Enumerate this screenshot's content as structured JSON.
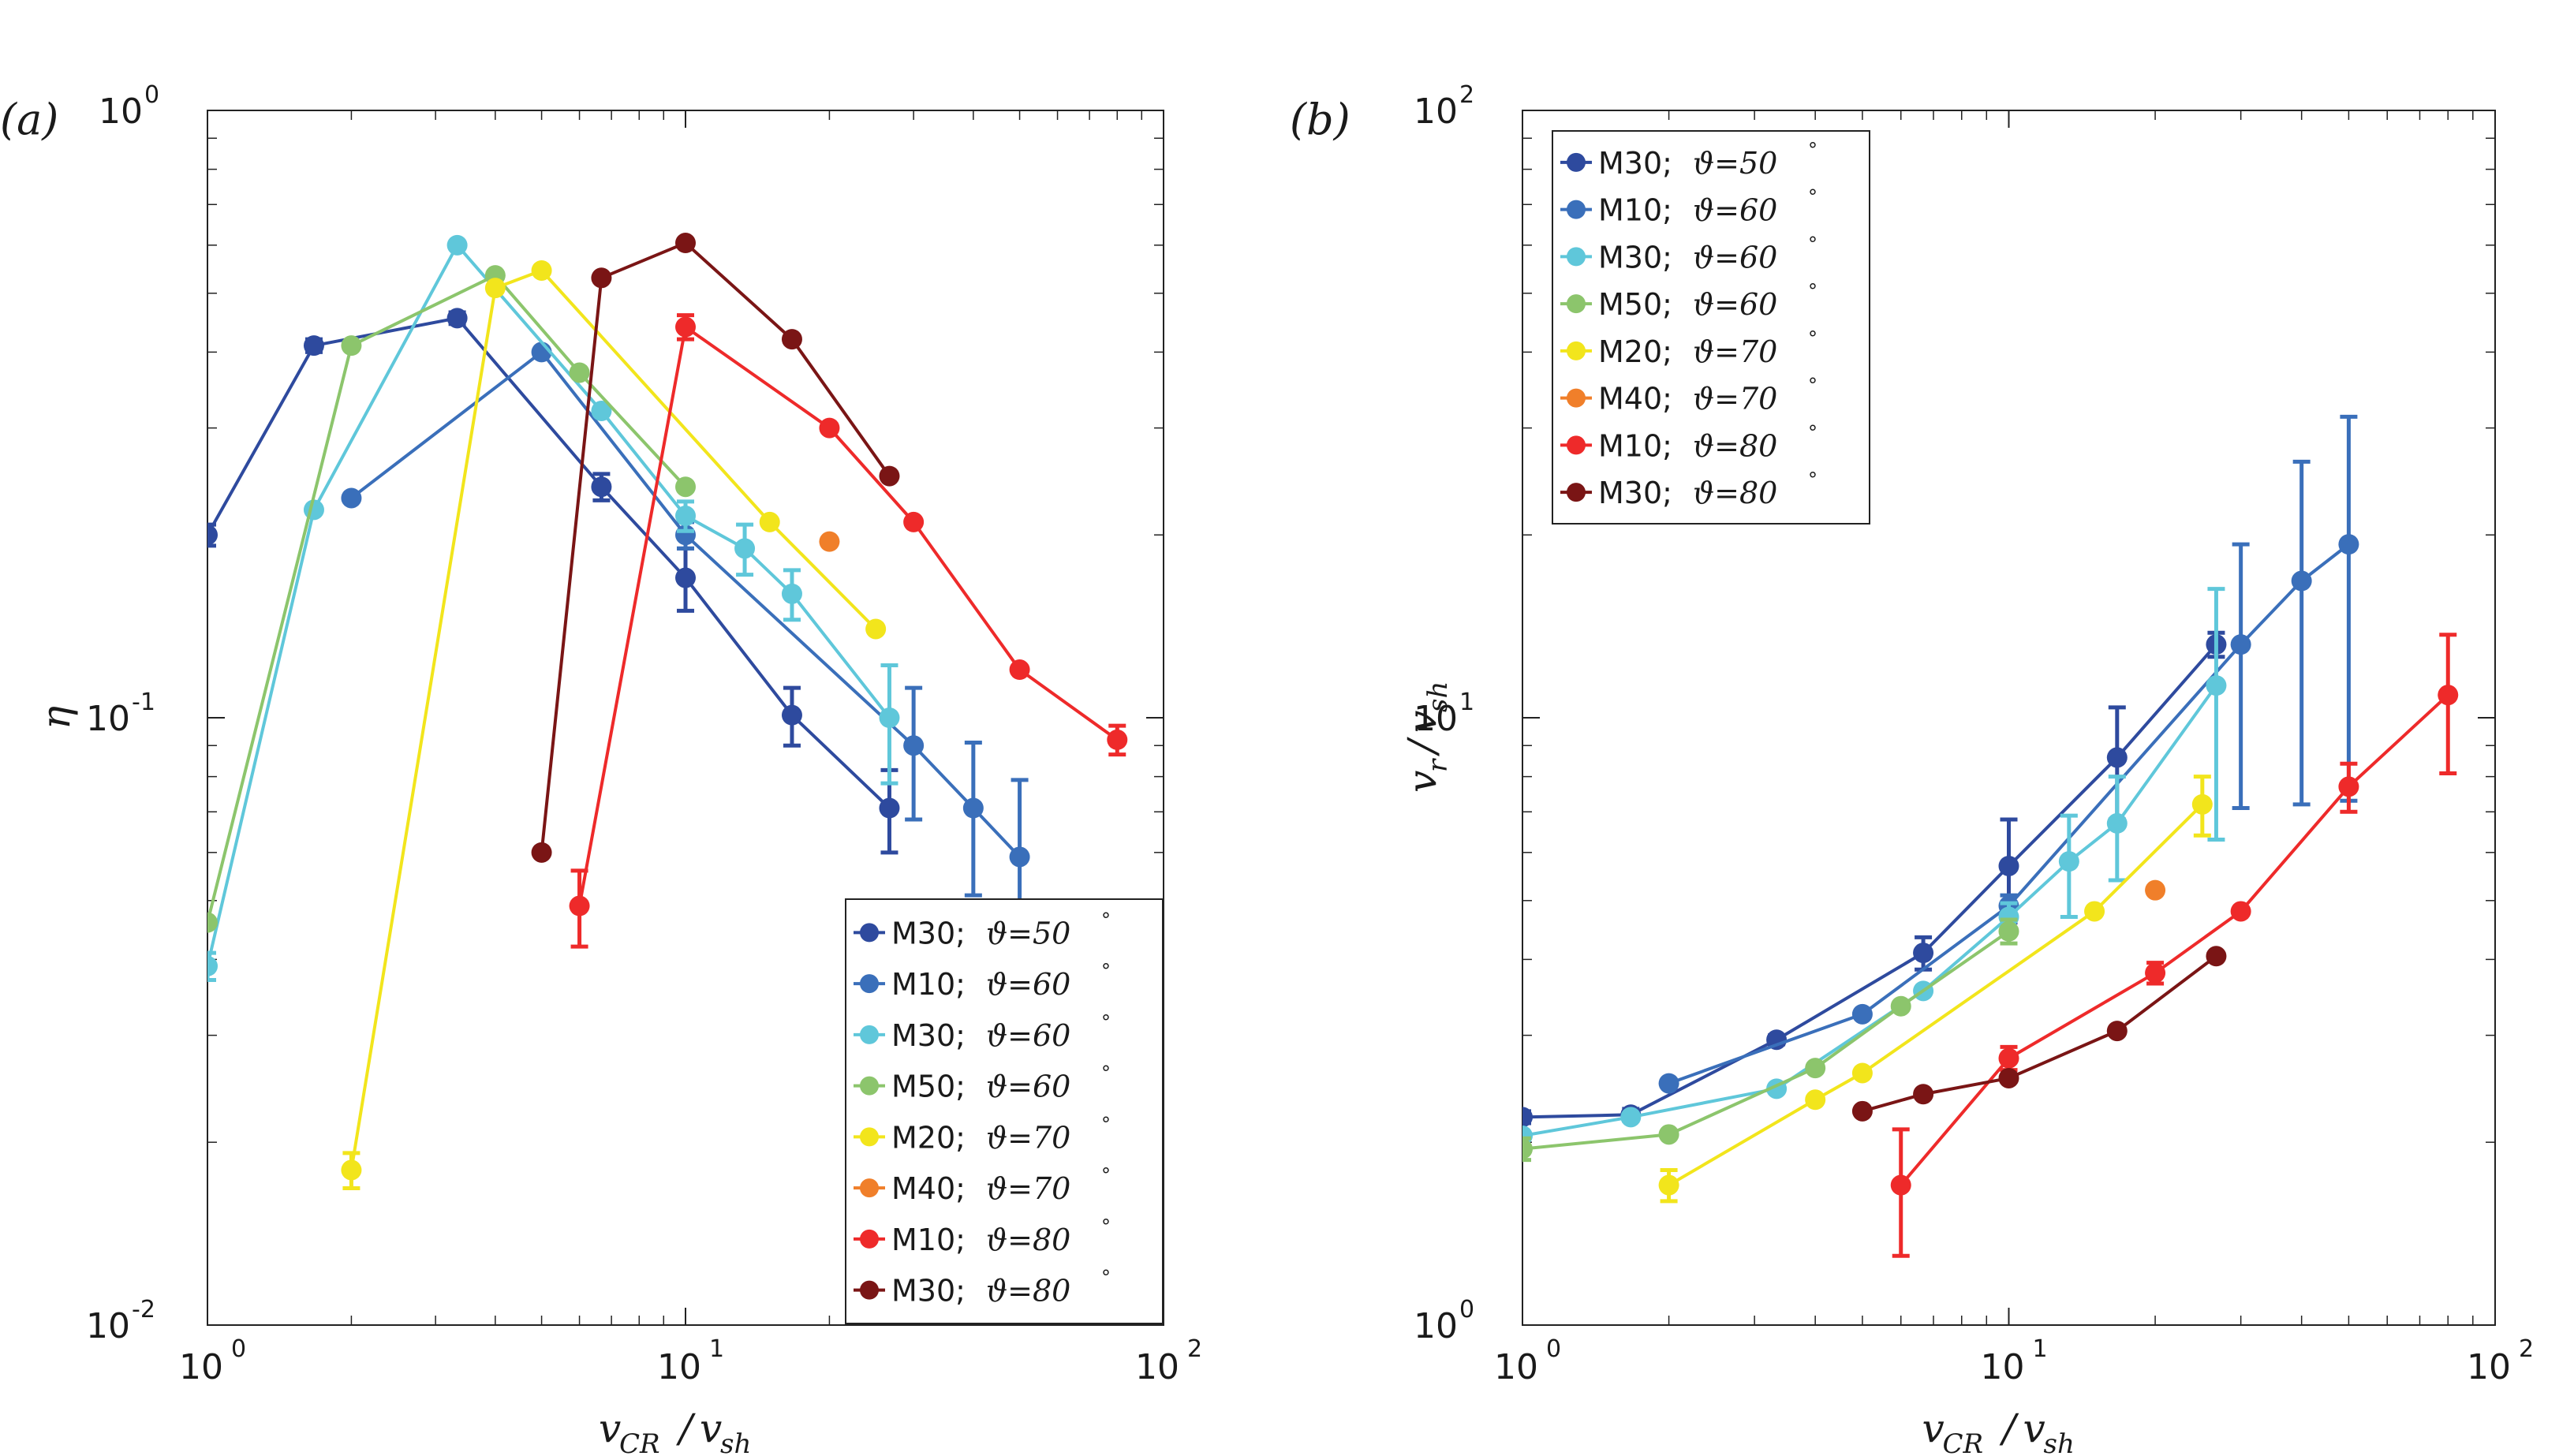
{
  "chart_data": [
    {
      "type": "line",
      "panel_label": "(a)",
      "xscale": "log",
      "yscale": "log",
      "xlim": [
        1,
        100
      ],
      "ylim": [
        0.01,
        1
      ],
      "xlabel": {
        "main": "v",
        "sub": "CR",
        "sep": "/",
        "main2": "v",
        "sub2": "sh"
      },
      "ylabel": {
        "main": "η"
      },
      "xticks": [
        {
          "base": "10",
          "exp": "0"
        },
        {
          "base": "10",
          "exp": "1"
        },
        {
          "base": "10",
          "exp": "2"
        }
      ],
      "yticks": [
        {
          "base": "10",
          "exp": "-2"
        },
        {
          "base": "10",
          "exp": "-1"
        },
        {
          "base": "10",
          "exp": "0"
        }
      ],
      "legend_position": "bottom-right",
      "series": [
        {
          "name": "M30; ϑ=50°",
          "label": "M30;",
          "theta": "ϑ=50",
          "color": "#2e4a9e",
          "points": [
            [
              1,
              0.2
            ],
            [
              1.67,
              0.41
            ],
            [
              3.33,
              0.455
            ],
            [
              6.67,
              0.24
            ],
            [
              10,
              0.17
            ],
            [
              16.7,
              0.101
            ],
            [
              26.7,
              0.071
            ]
          ],
          "err": [
            0.008,
            0.01,
            0.01,
            0.012,
            0.02,
            0.011,
            0.011
          ]
        },
        {
          "name": "M10; ϑ=60°",
          "label": "M10;",
          "theta": "ϑ=60",
          "color": "#3a6fba",
          "points": [
            [
              2,
              0.23
            ],
            [
              5,
              0.4
            ],
            [
              10,
              0.2
            ],
            [
              30,
              0.09
            ],
            [
              40,
              0.071
            ],
            [
              50,
              0.059
            ]
          ],
          "err": [
            0,
            0,
            0.01,
            0.022,
            0.02,
            0.02
          ]
        },
        {
          "name": "M30; ϑ=60°",
          "label": "M30;",
          "theta": "ϑ=60",
          "color": "#5fc7da",
          "points": [
            [
              1,
              0.039
            ],
            [
              1.67,
              0.22
            ],
            [
              3.33,
              0.6
            ],
            [
              6.67,
              0.32
            ],
            [
              10,
              0.215
            ],
            [
              13.3,
              0.19
            ],
            [
              16.7,
              0.16
            ],
            [
              26.7,
              0.1
            ]
          ],
          "err": [
            0.002,
            0,
            0,
            0,
            0.012,
            0.018,
            0.015,
            0.022
          ]
        },
        {
          "name": "M50; ϑ=60°",
          "label": "M50;",
          "theta": "ϑ=60",
          "color": "#8cc56c",
          "points": [
            [
              1,
              0.046
            ],
            [
              2,
              0.41
            ],
            [
              4,
              0.535
            ],
            [
              6,
              0.37
            ],
            [
              10,
              0.24
            ]
          ],
          "err": [
            0,
            0,
            0,
            0,
            0
          ]
        },
        {
          "name": "M20; ϑ=70°",
          "label": "M20;",
          "theta": "ϑ=70",
          "color": "#f2e51c",
          "points": [
            [
              2,
              0.018
            ],
            [
              4,
              0.51
            ],
            [
              5,
              0.545
            ],
            [
              15,
              0.21
            ],
            [
              25,
              0.14
            ]
          ],
          "err": [
            0.0012,
            0,
            0,
            0,
            0
          ]
        },
        {
          "name": "M40; ϑ=70°",
          "label": "M40;",
          "theta": "ϑ=70",
          "color": "#f07f2a",
          "points": [
            [
              20,
              0.195
            ]
          ],
          "err": [
            0
          ]
        },
        {
          "name": "M10; ϑ=80°",
          "label": "M10;",
          "theta": "ϑ=80",
          "color": "#ee2a2a",
          "points": [
            [
              6,
              0.049
            ],
            [
              10,
              0.44
            ],
            [
              20,
              0.3
            ],
            [
              30,
              0.21
            ],
            [
              50,
              0.12
            ],
            [
              80,
              0.092
            ]
          ],
          "err": [
            0.007,
            0.02,
            0,
            0,
            0,
            0.005
          ]
        },
        {
          "name": "M30; ϑ=80°",
          "label": "M30;",
          "theta": "ϑ=80",
          "color": "#7a1515",
          "points": [
            [
              5,
              0.06
            ],
            [
              6.67,
              0.53
            ],
            [
              10,
              0.605
            ],
            [
              16.7,
              0.42
            ],
            [
              26.7,
              0.25
            ]
          ],
          "err": [
            0,
            0,
            0,
            0,
            0
          ]
        }
      ]
    },
    {
      "type": "line",
      "panel_label": "(b)",
      "xscale": "log",
      "yscale": "log",
      "xlim": [
        1,
        100
      ],
      "ylim": [
        1,
        100
      ],
      "xlabel": {
        "main": "v",
        "sub": "CR",
        "sep": "/",
        "main2": "v",
        "sub2": "sh"
      },
      "ylabel": {
        "main": "v",
        "sub": "r",
        "sep": "/",
        "main2": "v",
        "sub2": "sh"
      },
      "xticks": [
        {
          "base": "10",
          "exp": "0"
        },
        {
          "base": "10",
          "exp": "1"
        },
        {
          "base": "10",
          "exp": "2"
        }
      ],
      "yticks": [
        {
          "base": "10",
          "exp": "0"
        },
        {
          "base": "10",
          "exp": "1"
        },
        {
          "base": "10",
          "exp": "2"
        }
      ],
      "legend_position": "top-left",
      "series": [
        {
          "name": "M30; ϑ=50°",
          "label": "M30;",
          "theta": "ϑ=50",
          "color": "#2e4a9e",
          "points": [
            [
              1,
              2.2
            ],
            [
              1.67,
              2.22
            ],
            [
              3.33,
              2.95
            ],
            [
              6.67,
              4.1
            ],
            [
              10,
              5.7
            ],
            [
              16.7,
              8.6
            ],
            [
              26.7,
              13.2
            ]
          ],
          "err": [
            0.05,
            0.05,
            0.05,
            0.25,
            1.1,
            1.8,
            0.6
          ]
        },
        {
          "name": "M10; ϑ=60°",
          "label": "M10;",
          "theta": "ϑ=60",
          "color": "#3a6fba",
          "points": [
            [
              2,
              2.5
            ],
            [
              5,
              3.25
            ],
            [
              10,
              4.9
            ],
            [
              30,
              13.2
            ],
            [
              40,
              16.8
            ],
            [
              50,
              19.3
            ]
          ],
          "err": [
            0,
            0,
            0.2,
            6.1,
            9.6,
            12
          ]
        },
        {
          "name": "M30; ϑ=60°",
          "label": "M30;",
          "theta": "ϑ=60",
          "color": "#5fc7da",
          "points": [
            [
              1,
              2.05
            ],
            [
              1.67,
              2.2
            ],
            [
              3.33,
              2.45
            ],
            [
              6.67,
              3.55
            ],
            [
              10,
              4.7
            ],
            [
              13.3,
              5.8
            ],
            [
              16.7,
              6.7
            ],
            [
              26.7,
              11.3
            ]
          ],
          "err": [
            0,
            0,
            0,
            0,
            0.25,
            1.1,
            1.3,
            5
          ]
        },
        {
          "name": "M50; ϑ=60°",
          "label": "M50;",
          "theta": "ϑ=60",
          "color": "#8cc56c",
          "points": [
            [
              1,
              1.95
            ],
            [
              2,
              2.06
            ],
            [
              4,
              2.65
            ],
            [
              6,
              3.35
            ],
            [
              10,
              4.45
            ]
          ],
          "err": [
            0.08,
            0,
            0,
            0,
            0.2
          ]
        },
        {
          "name": "M20; ϑ=70°",
          "label": "M20;",
          "theta": "ϑ=70",
          "color": "#f2e51c",
          "points": [
            [
              2,
              1.7
            ],
            [
              4,
              2.35
            ],
            [
              5,
              2.6
            ],
            [
              15,
              4.8
            ],
            [
              25,
              7.2
            ]
          ],
          "err": [
            0.1,
            0,
            0,
            0,
            0.8
          ]
        },
        {
          "name": "M40; ϑ=70°",
          "label": "M40;",
          "theta": "ϑ=70",
          "color": "#f07f2a",
          "points": [
            [
              20,
              5.2
            ]
          ],
          "err": [
            0
          ]
        },
        {
          "name": "M10; ϑ=80°",
          "label": "M10;",
          "theta": "ϑ=80",
          "color": "#ee2a2a",
          "points": [
            [
              6,
              1.7
            ],
            [
              10,
              2.75
            ],
            [
              20,
              3.8
            ],
            [
              30,
              4.8
            ],
            [
              50,
              7.7
            ],
            [
              80,
              10.9
            ]
          ],
          "err": [
            0.4,
            0.12,
            0.15,
            0,
            0.7,
            2.8
          ]
        },
        {
          "name": "M30; ϑ=80°",
          "label": "M30;",
          "theta": "ϑ=80",
          "color": "#7a1515",
          "points": [
            [
              5,
              2.25
            ],
            [
              6.67,
              2.4
            ],
            [
              10,
              2.55
            ],
            [
              16.7,
              3.05
            ],
            [
              26.7,
              4.05
            ]
          ],
          "err": [
            0,
            0,
            0,
            0,
            0
          ]
        }
      ]
    }
  ]
}
